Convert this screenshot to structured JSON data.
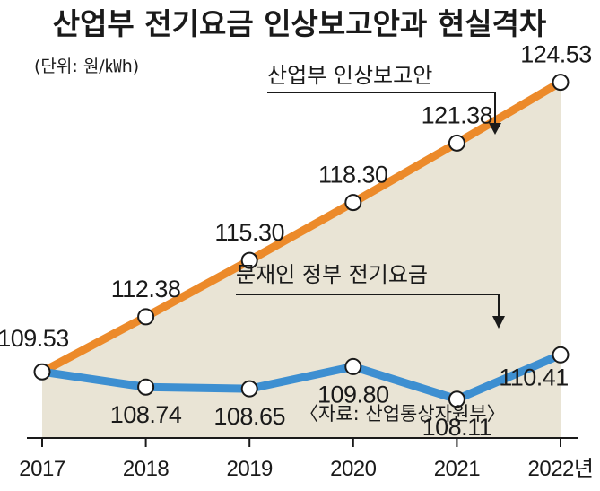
{
  "chart_data": {
    "type": "line",
    "title": "산업부 전기요금 인상보고안과 현실격차",
    "unit_label": "(단위: 원/㎾h)",
    "x": [
      "2017",
      "2018",
      "2019",
      "2020",
      "2021",
      "2022"
    ],
    "x_suffix": "년",
    "series": [
      {
        "name": "산업부 인상보고안",
        "color": "#ec8a2a",
        "values": [
          109.53,
          112.38,
          115.3,
          118.3,
          121.38,
          124.53
        ],
        "labels": [
          "109.53",
          "112.38",
          "115.30",
          "118.30",
          "121.38",
          "124.53"
        ]
      },
      {
        "name": "문재인 정부 전기요금",
        "color": "#3d8fd1",
        "values": [
          109.53,
          108.74,
          108.65,
          109.8,
          108.11,
          110.41
        ],
        "labels": [
          "109.53",
          "108.74",
          "108.65",
          "109.80",
          "108.11",
          "110.41"
        ]
      }
    ],
    "annotations": {
      "upper": "산업부 인상보고안",
      "lower": "문재인 정부 전기요금"
    },
    "source": "〈자료: 산업통상자원부〉",
    "fill_color": "#e9e4d5",
    "ylim": [
      106.1,
      126.0
    ]
  }
}
